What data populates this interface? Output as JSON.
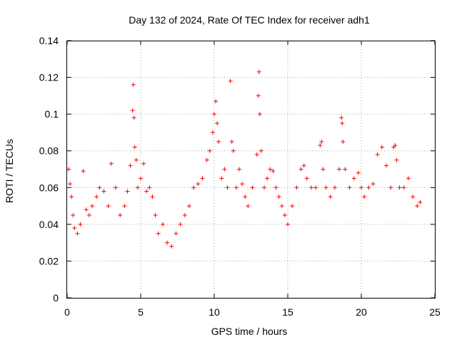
{
  "chart_data": {
    "type": "scatter",
    "title": "Day 132 of 2024, Rate Of TEC Index for receiver adh1",
    "xlabel": "GPS time / hours",
    "ylabel": "ROTI / TECUs",
    "xlim": [
      0,
      25
    ],
    "ylim": [
      0,
      0.14
    ],
    "x_ticks": [
      "0",
      "5",
      "10",
      "15",
      "20",
      "25"
    ],
    "y_ticks": [
      "0",
      "0.02",
      "0.04",
      "0.06",
      "0.08",
      "0.1",
      "0.12",
      "0.14"
    ],
    "grid": true,
    "marker": "+",
    "color": "#ff0000",
    "series": [
      {
        "x": [
          0.1,
          0.2,
          0.3,
          0.4,
          0.5,
          0.7,
          0.9,
          1.1,
          1.3,
          1.5,
          1.7,
          2.0,
          2.2,
          2.5,
          2.8,
          3.0,
          3.3,
          3.6,
          3.9,
          4.1,
          4.3,
          4.45,
          4.5,
          4.55,
          4.6,
          4.7,
          4.8,
          5.0,
          5.2,
          5.4,
          5.6,
          5.8,
          6.0,
          6.2,
          6.5,
          6.8,
          7.1,
          7.4,
          7.7,
          8.0,
          8.3,
          8.6,
          8.9,
          9.2,
          9.5,
          9.7,
          9.9,
          10.0,
          10.1,
          10.2,
          10.3,
          10.5,
          10.7,
          10.9,
          11.1,
          11.2,
          11.3,
          11.5,
          11.7,
          11.9,
          12.1,
          12.3,
          12.6,
          12.9,
          13.0,
          13.05,
          13.1,
          13.2,
          13.4,
          13.6,
          13.8,
          14.0,
          14.2,
          14.4,
          14.6,
          14.8,
          15.0,
          15.3,
          15.6,
          15.9,
          16.1,
          16.3,
          16.6,
          16.9,
          17.2,
          17.3,
          17.4,
          17.6,
          17.9,
          18.2,
          18.5,
          18.65,
          18.7,
          18.75,
          18.9,
          19.2,
          19.5,
          19.8,
          20.0,
          20.2,
          20.5,
          20.8,
          21.1,
          21.4,
          21.7,
          22.0,
          22.2,
          22.3,
          22.4,
          22.6,
          22.9,
          23.2,
          23.5,
          23.8,
          24.0
        ],
        "y": [
          0.07,
          0.062,
          0.055,
          0.045,
          0.038,
          0.035,
          0.04,
          0.069,
          0.048,
          0.045,
          0.05,
          0.055,
          0.06,
          0.058,
          0.05,
          0.073,
          0.06,
          0.045,
          0.05,
          0.058,
          0.072,
          0.102,
          0.116,
          0.098,
          0.082,
          0.075,
          0.06,
          0.065,
          0.073,
          0.058,
          0.06,
          0.055,
          0.045,
          0.035,
          0.04,
          0.03,
          0.028,
          0.035,
          0.04,
          0.045,
          0.05,
          0.06,
          0.062,
          0.065,
          0.075,
          0.08,
          0.09,
          0.1,
          0.107,
          0.095,
          0.085,
          0.065,
          0.07,
          0.06,
          0.118,
          0.085,
          0.08,
          0.06,
          0.07,
          0.062,
          0.055,
          0.05,
          0.06,
          0.078,
          0.11,
          0.123,
          0.1,
          0.08,
          0.06,
          0.065,
          0.07,
          0.069,
          0.06,
          0.055,
          0.05,
          0.045,
          0.04,
          0.05,
          0.06,
          0.07,
          0.072,
          0.065,
          0.06,
          0.06,
          0.083,
          0.085,
          0.07,
          0.06,
          0.055,
          0.06,
          0.07,
          0.098,
          0.095,
          0.085,
          0.07,
          0.06,
          0.065,
          0.068,
          0.06,
          0.055,
          0.06,
          0.062,
          0.078,
          0.082,
          0.072,
          0.06,
          0.082,
          0.083,
          0.075,
          0.06,
          0.06,
          0.065,
          0.055,
          0.05,
          0.052
        ]
      }
    ]
  }
}
